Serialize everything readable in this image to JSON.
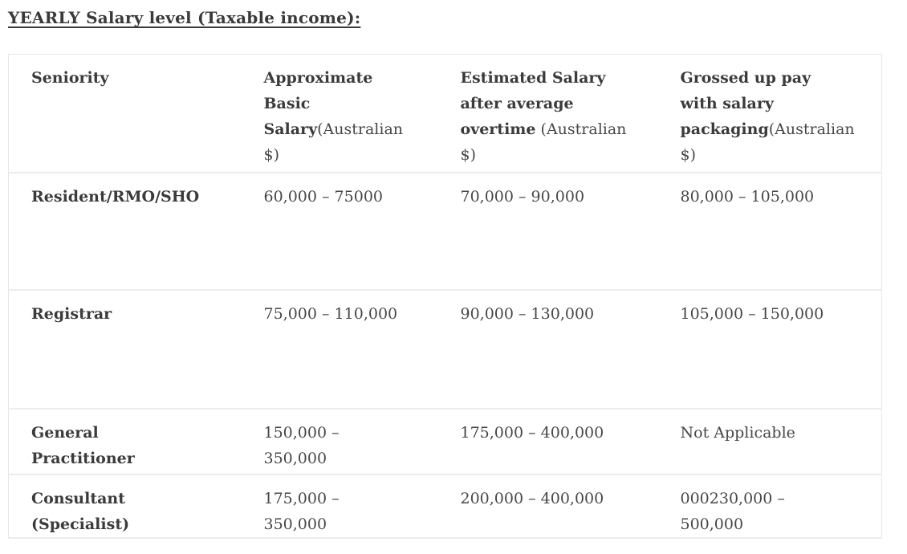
{
  "page": {
    "title": "YEARLY Salary level (Taxable income):"
  },
  "colors": {
    "text_dark": "#3b3b3b",
    "text_regular": "#474747",
    "table_border": "#e7e7e7",
    "row_divider": "#ececec",
    "background": "#ffffff"
  },
  "table": {
    "headers": [
      {
        "bold": "Seniority",
        "normal": ""
      },
      {
        "bold": "Approximate\nBasic\nSalary",
        "normal": "(Australian\n$)"
      },
      {
        "bold": "Estimated Salary\nafter average\novertime",
        "normal": " (Australian\n$)"
      },
      {
        "bold": "Grossed up pay\nwith salary\npackaging",
        "normal": "(Australian\n$)"
      }
    ],
    "rows": [
      {
        "seniority": "Resident/RMO/SHO",
        "basic_salary": "60,000 – 75000",
        "overtime_salary": "70,000 – 90,000",
        "grossed_pay": "80,000 – 105,000"
      },
      {
        "seniority": "Registrar",
        "basic_salary": "75,000 – 110,000",
        "overtime_salary": "90,000 – 130,000",
        "grossed_pay": "105,000 – 150,000"
      },
      {
        "seniority": "General\nPractitioner",
        "basic_salary": "150,000 –\n350,000",
        "overtime_salary": "175,000 – 400,000",
        "grossed_pay": "Not Applicable"
      },
      {
        "seniority": "Consultant\n(Specialist)",
        "basic_salary": "175,000 –\n350,000",
        "overtime_salary": "200,000 – 400,000",
        "grossed_pay": "000230,000 –\n500,000"
      }
    ]
  }
}
